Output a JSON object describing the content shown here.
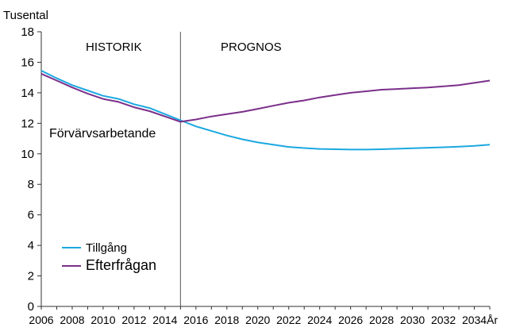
{
  "chart_data": {
    "type": "line",
    "y_unit_label": "Tusental",
    "x_unit_label": "År",
    "ylim": [
      0,
      18
    ],
    "xlim": [
      2006,
      2035
    ],
    "y_ticks": [
      0,
      2,
      4,
      6,
      8,
      10,
      12,
      14,
      16,
      18
    ],
    "x_ticks": [
      2006,
      2008,
      2010,
      2012,
      2014,
      2016,
      2018,
      2020,
      2022,
      2024,
      2026,
      2028,
      2030,
      2032,
      2034
    ],
    "divider_x": 2015,
    "annotations": {
      "historik": "HISTORIK",
      "prognos": "PROGNOS",
      "group_label": "Förvärvsarbetande"
    },
    "legend_position": "bottom-left",
    "grid": false,
    "series": [
      {
        "name": "Tillgång",
        "color": "#1ba8e0",
        "x": [
          2006,
          2007,
          2008,
          2009,
          2010,
          2011,
          2012,
          2013,
          2014,
          2015,
          2016,
          2017,
          2018,
          2019,
          2020,
          2021,
          2022,
          2023,
          2024,
          2025,
          2026,
          2027,
          2028,
          2029,
          2030,
          2031,
          2032,
          2033,
          2034,
          2035
        ],
        "values": [
          15.45,
          14.95,
          14.5,
          14.15,
          13.8,
          13.6,
          13.25,
          13.0,
          12.6,
          12.2,
          11.8,
          11.5,
          11.2,
          10.95,
          10.75,
          10.6,
          10.45,
          10.38,
          10.32,
          10.3,
          10.28,
          10.28,
          10.3,
          10.33,
          10.37,
          10.4,
          10.43,
          10.47,
          10.52,
          10.6
        ]
      },
      {
        "name": "Efterfrågan",
        "color": "#7b2f8a",
        "x": [
          2006,
          2007,
          2008,
          2009,
          2010,
          2011,
          2012,
          2013,
          2014,
          2015,
          2016,
          2017,
          2018,
          2019,
          2020,
          2021,
          2022,
          2023,
          2024,
          2025,
          2026,
          2027,
          2028,
          2029,
          2030,
          2031,
          2032,
          2033,
          2034,
          2035
        ],
        "values": [
          15.25,
          14.8,
          14.35,
          13.95,
          13.6,
          13.4,
          13.05,
          12.8,
          12.45,
          12.1,
          12.25,
          12.45,
          12.6,
          12.75,
          12.95,
          13.15,
          13.35,
          13.5,
          13.7,
          13.85,
          14.0,
          14.1,
          14.2,
          14.25,
          14.3,
          14.35,
          14.42,
          14.5,
          14.65,
          14.8
        ]
      }
    ]
  }
}
